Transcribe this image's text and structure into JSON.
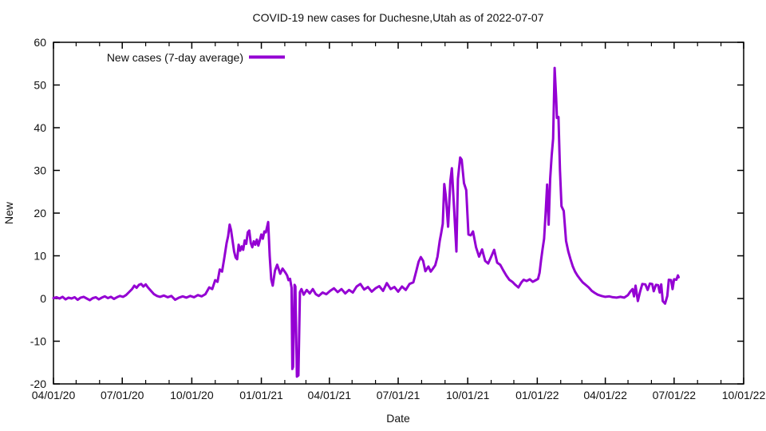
{
  "chart_data": {
    "type": "line",
    "title": "COVID-19 new cases for Duchesne,Utah as of 2022-07-07",
    "xlabel": "Date",
    "ylabel": "New",
    "grid": false,
    "legend_position": "top-left-inside",
    "background": "#ffffff",
    "axis_color": "#000000",
    "xmin": "2020-04-01",
    "xmax": "2022-10-01",
    "ymin": -20,
    "ymax": 60,
    "yticks": [
      -20,
      -10,
      0,
      10,
      20,
      30,
      40,
      50,
      60
    ],
    "xticks": [
      {
        "date": "2020-04-01",
        "label": "04/01/20"
      },
      {
        "date": "2020-07-01",
        "label": "07/01/20"
      },
      {
        "date": "2020-10-01",
        "label": "10/01/20"
      },
      {
        "date": "2021-01-01",
        "label": "01/01/21"
      },
      {
        "date": "2021-04-01",
        "label": "04/01/21"
      },
      {
        "date": "2021-07-01",
        "label": "07/01/21"
      },
      {
        "date": "2021-10-01",
        "label": "10/01/21"
      },
      {
        "date": "2022-01-01",
        "label": "01/01/22"
      },
      {
        "date": "2022-04-01",
        "label": "04/01/22"
      },
      {
        "date": "2022-07-01",
        "label": "07/01/22"
      },
      {
        "date": "2022-10-01",
        "label": "10/01/22"
      }
    ],
    "series": [
      {
        "name": "New cases (7-day average)",
        "color": "#9400D3",
        "line_width": 3,
        "points": [
          [
            "2020-04-01",
            0.1
          ],
          [
            "2020-04-05",
            0.3
          ],
          [
            "2020-04-09",
            0.0
          ],
          [
            "2020-04-13",
            0.4
          ],
          [
            "2020-04-17",
            -0.2
          ],
          [
            "2020-04-21",
            0.2
          ],
          [
            "2020-04-25",
            0.0
          ],
          [
            "2020-04-29",
            0.3
          ],
          [
            "2020-05-03",
            -0.3
          ],
          [
            "2020-05-07",
            0.2
          ],
          [
            "2020-05-11",
            0.4
          ],
          [
            "2020-05-15",
            0.0
          ],
          [
            "2020-05-19",
            -0.4
          ],
          [
            "2020-05-23",
            0.1
          ],
          [
            "2020-05-27",
            0.3
          ],
          [
            "2020-05-31",
            -0.2
          ],
          [
            "2020-06-04",
            0.2
          ],
          [
            "2020-06-08",
            0.5
          ],
          [
            "2020-06-12",
            0.1
          ],
          [
            "2020-06-16",
            0.4
          ],
          [
            "2020-06-20",
            -0.1
          ],
          [
            "2020-06-24",
            0.3
          ],
          [
            "2020-06-28",
            0.6
          ],
          [
            "2020-07-02",
            0.4
          ],
          [
            "2020-07-06",
            0.8
          ],
          [
            "2020-07-10",
            1.5
          ],
          [
            "2020-07-14",
            2.2
          ],
          [
            "2020-07-17",
            3.0
          ],
          [
            "2020-07-20",
            2.5
          ],
          [
            "2020-07-23",
            3.2
          ],
          [
            "2020-07-26",
            3.4
          ],
          [
            "2020-07-29",
            2.8
          ],
          [
            "2020-08-01",
            3.3
          ],
          [
            "2020-08-04",
            2.6
          ],
          [
            "2020-08-08",
            1.8
          ],
          [
            "2020-08-12",
            1.0
          ],
          [
            "2020-08-16",
            0.6
          ],
          [
            "2020-08-20",
            0.4
          ],
          [
            "2020-08-25",
            0.7
          ],
          [
            "2020-08-30",
            0.3
          ],
          [
            "2020-09-04",
            0.6
          ],
          [
            "2020-09-09",
            -0.3
          ],
          [
            "2020-09-14",
            0.2
          ],
          [
            "2020-09-19",
            0.5
          ],
          [
            "2020-09-24",
            0.2
          ],
          [
            "2020-09-29",
            0.6
          ],
          [
            "2020-10-04",
            0.3
          ],
          [
            "2020-10-09",
            0.8
          ],
          [
            "2020-10-14",
            0.5
          ],
          [
            "2020-10-19",
            1.0
          ],
          [
            "2020-10-24",
            2.6
          ],
          [
            "2020-10-28",
            2.2
          ],
          [
            "2020-11-01",
            4.3
          ],
          [
            "2020-11-04",
            3.9
          ],
          [
            "2020-11-07",
            6.8
          ],
          [
            "2020-11-10",
            6.3
          ],
          [
            "2020-11-13",
            9.5
          ],
          [
            "2020-11-16",
            13.0
          ],
          [
            "2020-11-18",
            14.6
          ],
          [
            "2020-11-20",
            17.3
          ],
          [
            "2020-11-22",
            16.0
          ],
          [
            "2020-11-24",
            13.5
          ],
          [
            "2020-11-26",
            11.0
          ],
          [
            "2020-11-28",
            9.6
          ],
          [
            "2020-11-30",
            9.2
          ],
          [
            "2020-12-02",
            12.6
          ],
          [
            "2020-12-04",
            11.2
          ],
          [
            "2020-12-06",
            12.2
          ],
          [
            "2020-12-08",
            11.4
          ],
          [
            "2020-12-10",
            13.6
          ],
          [
            "2020-12-12",
            12.8
          ],
          [
            "2020-12-14",
            15.5
          ],
          [
            "2020-12-16",
            15.9
          ],
          [
            "2020-12-18",
            13.0
          ],
          [
            "2020-12-20",
            12.0
          ],
          [
            "2020-12-22",
            13.4
          ],
          [
            "2020-12-24",
            12.6
          ],
          [
            "2020-12-26",
            13.8
          ],
          [
            "2020-12-28",
            12.4
          ],
          [
            "2020-12-30",
            13.6
          ],
          [
            "2021-01-01",
            15.0
          ],
          [
            "2021-01-03",
            14.0
          ],
          [
            "2021-01-05",
            15.7
          ],
          [
            "2021-01-07",
            15.5
          ],
          [
            "2021-01-10",
            17.9
          ],
          [
            "2021-01-12",
            10.0
          ],
          [
            "2021-01-14",
            4.5
          ],
          [
            "2021-01-16",
            3.0
          ],
          [
            "2021-01-19",
            6.5
          ],
          [
            "2021-01-22",
            7.9
          ],
          [
            "2021-01-26",
            5.8
          ],
          [
            "2021-01-29",
            7.0
          ],
          [
            "2021-02-02",
            6.0
          ],
          [
            "2021-02-04",
            5.4
          ],
          [
            "2021-02-06",
            4.3
          ],
          [
            "2021-02-08",
            4.6
          ],
          [
            "2021-02-10",
            2.5
          ],
          [
            "2021-02-11",
            -16.5
          ],
          [
            "2021-02-12",
            -16.0
          ],
          [
            "2021-02-14",
            3.2
          ],
          [
            "2021-02-15",
            2.8
          ],
          [
            "2021-02-17",
            -18.3
          ],
          [
            "2021-02-19",
            -18.0
          ],
          [
            "2021-02-21",
            1.5
          ],
          [
            "2021-02-23",
            2.2
          ],
          [
            "2021-02-26",
            0.9
          ],
          [
            "2021-03-02",
            2.0
          ],
          [
            "2021-03-06",
            1.2
          ],
          [
            "2021-03-10",
            2.2
          ],
          [
            "2021-03-14",
            1.0
          ],
          [
            "2021-03-18",
            0.6
          ],
          [
            "2021-03-23",
            1.4
          ],
          [
            "2021-03-28",
            1.0
          ],
          [
            "2021-04-02",
            1.8
          ],
          [
            "2021-04-07",
            2.4
          ],
          [
            "2021-04-12",
            1.5
          ],
          [
            "2021-04-17",
            2.2
          ],
          [
            "2021-04-22",
            1.2
          ],
          [
            "2021-04-27",
            2.0
          ],
          [
            "2021-05-02",
            1.4
          ],
          [
            "2021-05-07",
            2.8
          ],
          [
            "2021-05-12",
            3.4
          ],
          [
            "2021-05-17",
            2.1
          ],
          [
            "2021-05-22",
            2.7
          ],
          [
            "2021-05-27",
            1.6
          ],
          [
            "2021-06-01",
            2.4
          ],
          [
            "2021-06-06",
            2.9
          ],
          [
            "2021-06-11",
            1.8
          ],
          [
            "2021-06-16",
            3.6
          ],
          [
            "2021-06-21",
            2.2
          ],
          [
            "2021-06-26",
            2.7
          ],
          [
            "2021-07-01",
            1.6
          ],
          [
            "2021-07-06",
            2.8
          ],
          [
            "2021-07-11",
            2.0
          ],
          [
            "2021-07-16",
            3.4
          ],
          [
            "2021-07-21",
            3.8
          ],
          [
            "2021-07-25",
            6.5
          ],
          [
            "2021-07-28",
            8.6
          ],
          [
            "2021-07-31",
            9.7
          ],
          [
            "2021-08-03",
            8.8
          ],
          [
            "2021-08-06",
            6.4
          ],
          [
            "2021-08-10",
            7.5
          ],
          [
            "2021-08-13",
            6.3
          ],
          [
            "2021-08-16",
            7.0
          ],
          [
            "2021-08-19",
            7.8
          ],
          [
            "2021-08-22",
            9.8
          ],
          [
            "2021-08-25",
            13.5
          ],
          [
            "2021-08-27",
            15.4
          ],
          [
            "2021-08-29",
            17.5
          ],
          [
            "2021-08-31",
            26.8
          ],
          [
            "2021-09-02",
            24.0
          ],
          [
            "2021-09-05",
            16.8
          ],
          [
            "2021-09-08",
            27.5
          ],
          [
            "2021-09-10",
            30.5
          ],
          [
            "2021-09-13",
            21.0
          ],
          [
            "2021-09-16",
            11.0
          ],
          [
            "2021-09-18",
            28.0
          ],
          [
            "2021-09-21",
            33.0
          ],
          [
            "2021-09-23",
            32.5
          ],
          [
            "2021-09-26",
            27.0
          ],
          [
            "2021-09-29",
            25.4
          ],
          [
            "2021-10-02",
            15.0
          ],
          [
            "2021-10-05",
            14.8
          ],
          [
            "2021-10-08",
            15.7
          ],
          [
            "2021-10-12",
            12.0
          ],
          [
            "2021-10-16",
            9.8
          ],
          [
            "2021-10-20",
            11.5
          ],
          [
            "2021-10-24",
            8.8
          ],
          [
            "2021-10-28",
            8.2
          ],
          [
            "2021-11-01",
            9.8
          ],
          [
            "2021-11-05",
            11.4
          ],
          [
            "2021-11-09",
            8.4
          ],
          [
            "2021-11-13",
            7.9
          ],
          [
            "2021-11-17",
            6.6
          ],
          [
            "2021-11-21",
            5.4
          ],
          [
            "2021-11-25",
            4.4
          ],
          [
            "2021-11-29",
            3.9
          ],
          [
            "2021-12-03",
            3.2
          ],
          [
            "2021-12-07",
            2.6
          ],
          [
            "2021-12-11",
            3.8
          ],
          [
            "2021-12-14",
            4.4
          ],
          [
            "2021-12-18",
            4.1
          ],
          [
            "2021-12-22",
            4.5
          ],
          [
            "2021-12-26",
            3.9
          ],
          [
            "2021-12-30",
            4.3
          ],
          [
            "2022-01-02",
            4.6
          ],
          [
            "2022-01-04",
            6.0
          ],
          [
            "2022-01-06",
            9.0
          ],
          [
            "2022-01-08",
            11.6
          ],
          [
            "2022-01-10",
            14.0
          ],
          [
            "2022-01-12",
            20.0
          ],
          [
            "2022-01-14",
            26.7
          ],
          [
            "2022-01-16",
            17.3
          ],
          [
            "2022-01-18",
            28.0
          ],
          [
            "2022-01-20",
            33.5
          ],
          [
            "2022-01-22",
            37.4
          ],
          [
            "2022-01-24",
            54.0
          ],
          [
            "2022-01-26",
            47.0
          ],
          [
            "2022-01-27",
            42.3
          ],
          [
            "2022-01-29",
            42.5
          ],
          [
            "2022-01-31",
            30.0
          ],
          [
            "2022-02-02",
            21.6
          ],
          [
            "2022-02-05",
            20.5
          ],
          [
            "2022-02-08",
            13.5
          ],
          [
            "2022-02-11",
            11.0
          ],
          [
            "2022-02-14",
            9.2
          ],
          [
            "2022-02-17",
            7.5
          ],
          [
            "2022-02-20",
            6.3
          ],
          [
            "2022-02-23",
            5.4
          ],
          [
            "2022-02-26",
            4.7
          ],
          [
            "2022-03-02",
            3.8
          ],
          [
            "2022-03-06",
            3.2
          ],
          [
            "2022-03-10",
            2.6
          ],
          [
            "2022-03-14",
            1.8
          ],
          [
            "2022-03-18",
            1.3
          ],
          [
            "2022-03-22",
            0.9
          ],
          [
            "2022-03-27",
            0.6
          ],
          [
            "2022-04-01",
            0.4
          ],
          [
            "2022-04-06",
            0.5
          ],
          [
            "2022-04-11",
            0.3
          ],
          [
            "2022-04-16",
            0.2
          ],
          [
            "2022-04-21",
            0.4
          ],
          [
            "2022-04-26",
            0.2
          ],
          [
            "2022-05-01",
            0.8
          ],
          [
            "2022-05-04",
            1.6
          ],
          [
            "2022-05-07",
            2.2
          ],
          [
            "2022-05-09",
            0.5
          ],
          [
            "2022-05-11",
            3.0
          ],
          [
            "2022-05-14",
            -0.6
          ],
          [
            "2022-05-17",
            1.6
          ],
          [
            "2022-05-20",
            3.4
          ],
          [
            "2022-05-24",
            3.3
          ],
          [
            "2022-05-27",
            2.0
          ],
          [
            "2022-05-30",
            3.5
          ],
          [
            "2022-06-02",
            3.4
          ],
          [
            "2022-06-04",
            1.7
          ],
          [
            "2022-06-07",
            3.2
          ],
          [
            "2022-06-10",
            3.1
          ],
          [
            "2022-06-12",
            1.4
          ],
          [
            "2022-06-14",
            3.3
          ],
          [
            "2022-06-16",
            -0.6
          ],
          [
            "2022-06-19",
            -1.2
          ],
          [
            "2022-06-22",
            0.6
          ],
          [
            "2022-06-24",
            4.4
          ],
          [
            "2022-06-27",
            4.3
          ],
          [
            "2022-06-29",
            2.2
          ],
          [
            "2022-07-01",
            4.5
          ],
          [
            "2022-07-04",
            4.4
          ],
          [
            "2022-07-06",
            5.4
          ],
          [
            "2022-07-07",
            5.0
          ]
        ]
      }
    ]
  }
}
